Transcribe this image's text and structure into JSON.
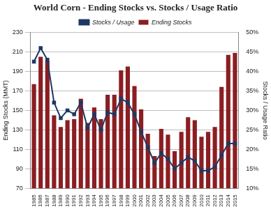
{
  "chart_data": {
    "type": "bar",
    "title": "World Corn - Ending Stocks vs. Stocks / Usage Ratio",
    "y_label": "Ending Stocks (MMT)",
    "y2_label": "Stocks / Usage Ratio",
    "categories": [
      "1985",
      "1986",
      "1987",
      "1988",
      "1989",
      "1990",
      "1991",
      "1992",
      "1993",
      "1994",
      "1995",
      "1996",
      "1997",
      "1998",
      "1999",
      "2000",
      "2001",
      "2002",
      "2003",
      "2004",
      "2005",
      "2006",
      "2007",
      "2008",
      "2009",
      "2010",
      "2011",
      "2012",
      "2013",
      "2014",
      "2015"
    ],
    "series": [
      {
        "name": "Ending Stocks",
        "type": "bar",
        "color": "#8b1e22",
        "values": [
          177,
          205,
          201,
          145,
          133,
          140,
          141,
          162,
          137,
          153,
          141,
          166,
          166,
          191,
          195,
          175,
          151,
          126,
          103,
          131,
          125,
          108,
          128,
          143,
          140,
          123,
          128,
          133,
          174,
          207,
          209
        ]
      },
      {
        "name": "Stocks / Usage",
        "type": "line",
        "axis": "y2",
        "color": "#1f3864",
        "marker": "square",
        "values": [
          42.5,
          46,
          43,
          32,
          28,
          30,
          29,
          32,
          25.5,
          29,
          25,
          29.5,
          29,
          33,
          32,
          29,
          24.5,
          20.5,
          16.5,
          19,
          17.5,
          15,
          16.5,
          18,
          17,
          14.5,
          14.5,
          15.5,
          18.5,
          21.5,
          21.5
        ]
      }
    ],
    "ylim": [
      70,
      230
    ],
    "yticks": [
      70,
      90,
      110,
      130,
      150,
      170,
      190,
      210,
      230
    ],
    "y2lim": [
      10,
      50
    ],
    "y2ticks": [
      {
        "value": 10,
        "label": "10%"
      },
      {
        "value": 15,
        "label": "15%"
      },
      {
        "value": 20,
        "label": "20%"
      },
      {
        "value": 25,
        "label": "25%"
      },
      {
        "value": 30,
        "label": "30%"
      },
      {
        "value": 35,
        "label": "35%"
      },
      {
        "value": 40,
        "label": "40%"
      },
      {
        "value": 45,
        "label": "45%"
      },
      {
        "value": 50,
        "label": "50%"
      }
    ],
    "grid": true,
    "legend": "top"
  }
}
